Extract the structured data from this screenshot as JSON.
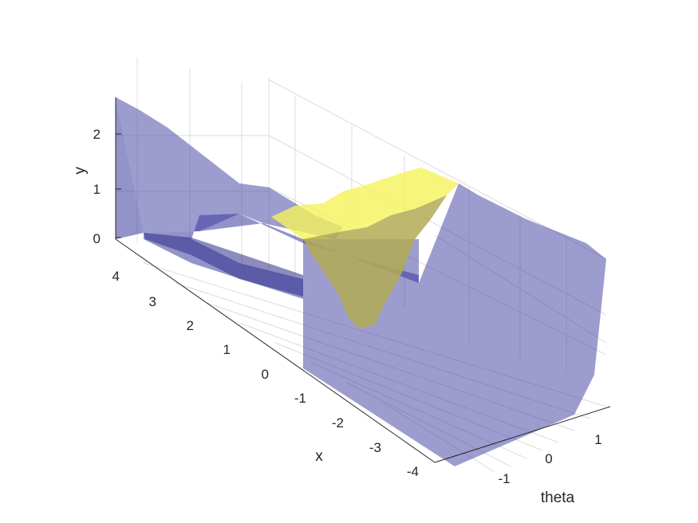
{
  "chart_data": {
    "type": "surface",
    "xlabel": "x",
    "ylabel": "y",
    "thetalabel": "theta",
    "x_ticks": [
      "4",
      "3",
      "2",
      "1",
      "0",
      "-1",
      "-2",
      "-3",
      "-4"
    ],
    "x_tick_values": [
      4,
      3,
      2,
      1,
      0,
      -1,
      -2,
      -3,
      -4
    ],
    "theta_ticks": [
      "-1",
      "0",
      "1"
    ],
    "theta_tick_values": [
      -1,
      0,
      1
    ],
    "y_ticks": [
      "0",
      "1",
      "2"
    ],
    "y_tick_values": [
      0,
      1,
      2
    ],
    "grid": true,
    "surfaces": [
      {
        "color": "#3b3a9e",
        "opacity": 0.52
      },
      {
        "color": "#f5f25a",
        "opacity": 0.75
      }
    ]
  }
}
